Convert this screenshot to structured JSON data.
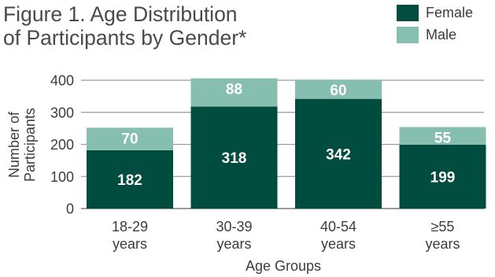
{
  "chart_data": {
    "type": "bar",
    "stacked": true,
    "title_lines": [
      "Figure 1. Age Distribution",
      "of Participants by Gender*"
    ],
    "categories": [
      [
        "18-29",
        "years"
      ],
      [
        "30-39",
        "years"
      ],
      [
        "40-54",
        "years"
      ],
      [
        "≥55",
        "years"
      ]
    ],
    "series": [
      {
        "name": "Female",
        "color": "#004d40",
        "values": [
          182,
          318,
          342,
          199
        ]
      },
      {
        "name": "Male",
        "color": "#86bfb0",
        "values": [
          70,
          88,
          60,
          55
        ]
      }
    ],
    "xlabel": "Age Groups",
    "ylabel_lines": [
      "Number of",
      "Participants"
    ],
    "ylim": [
      0,
      400
    ],
    "yticks": [
      "0",
      "100",
      "200",
      "300",
      "400"
    ],
    "grid": true,
    "legend_position": "top-right"
  }
}
